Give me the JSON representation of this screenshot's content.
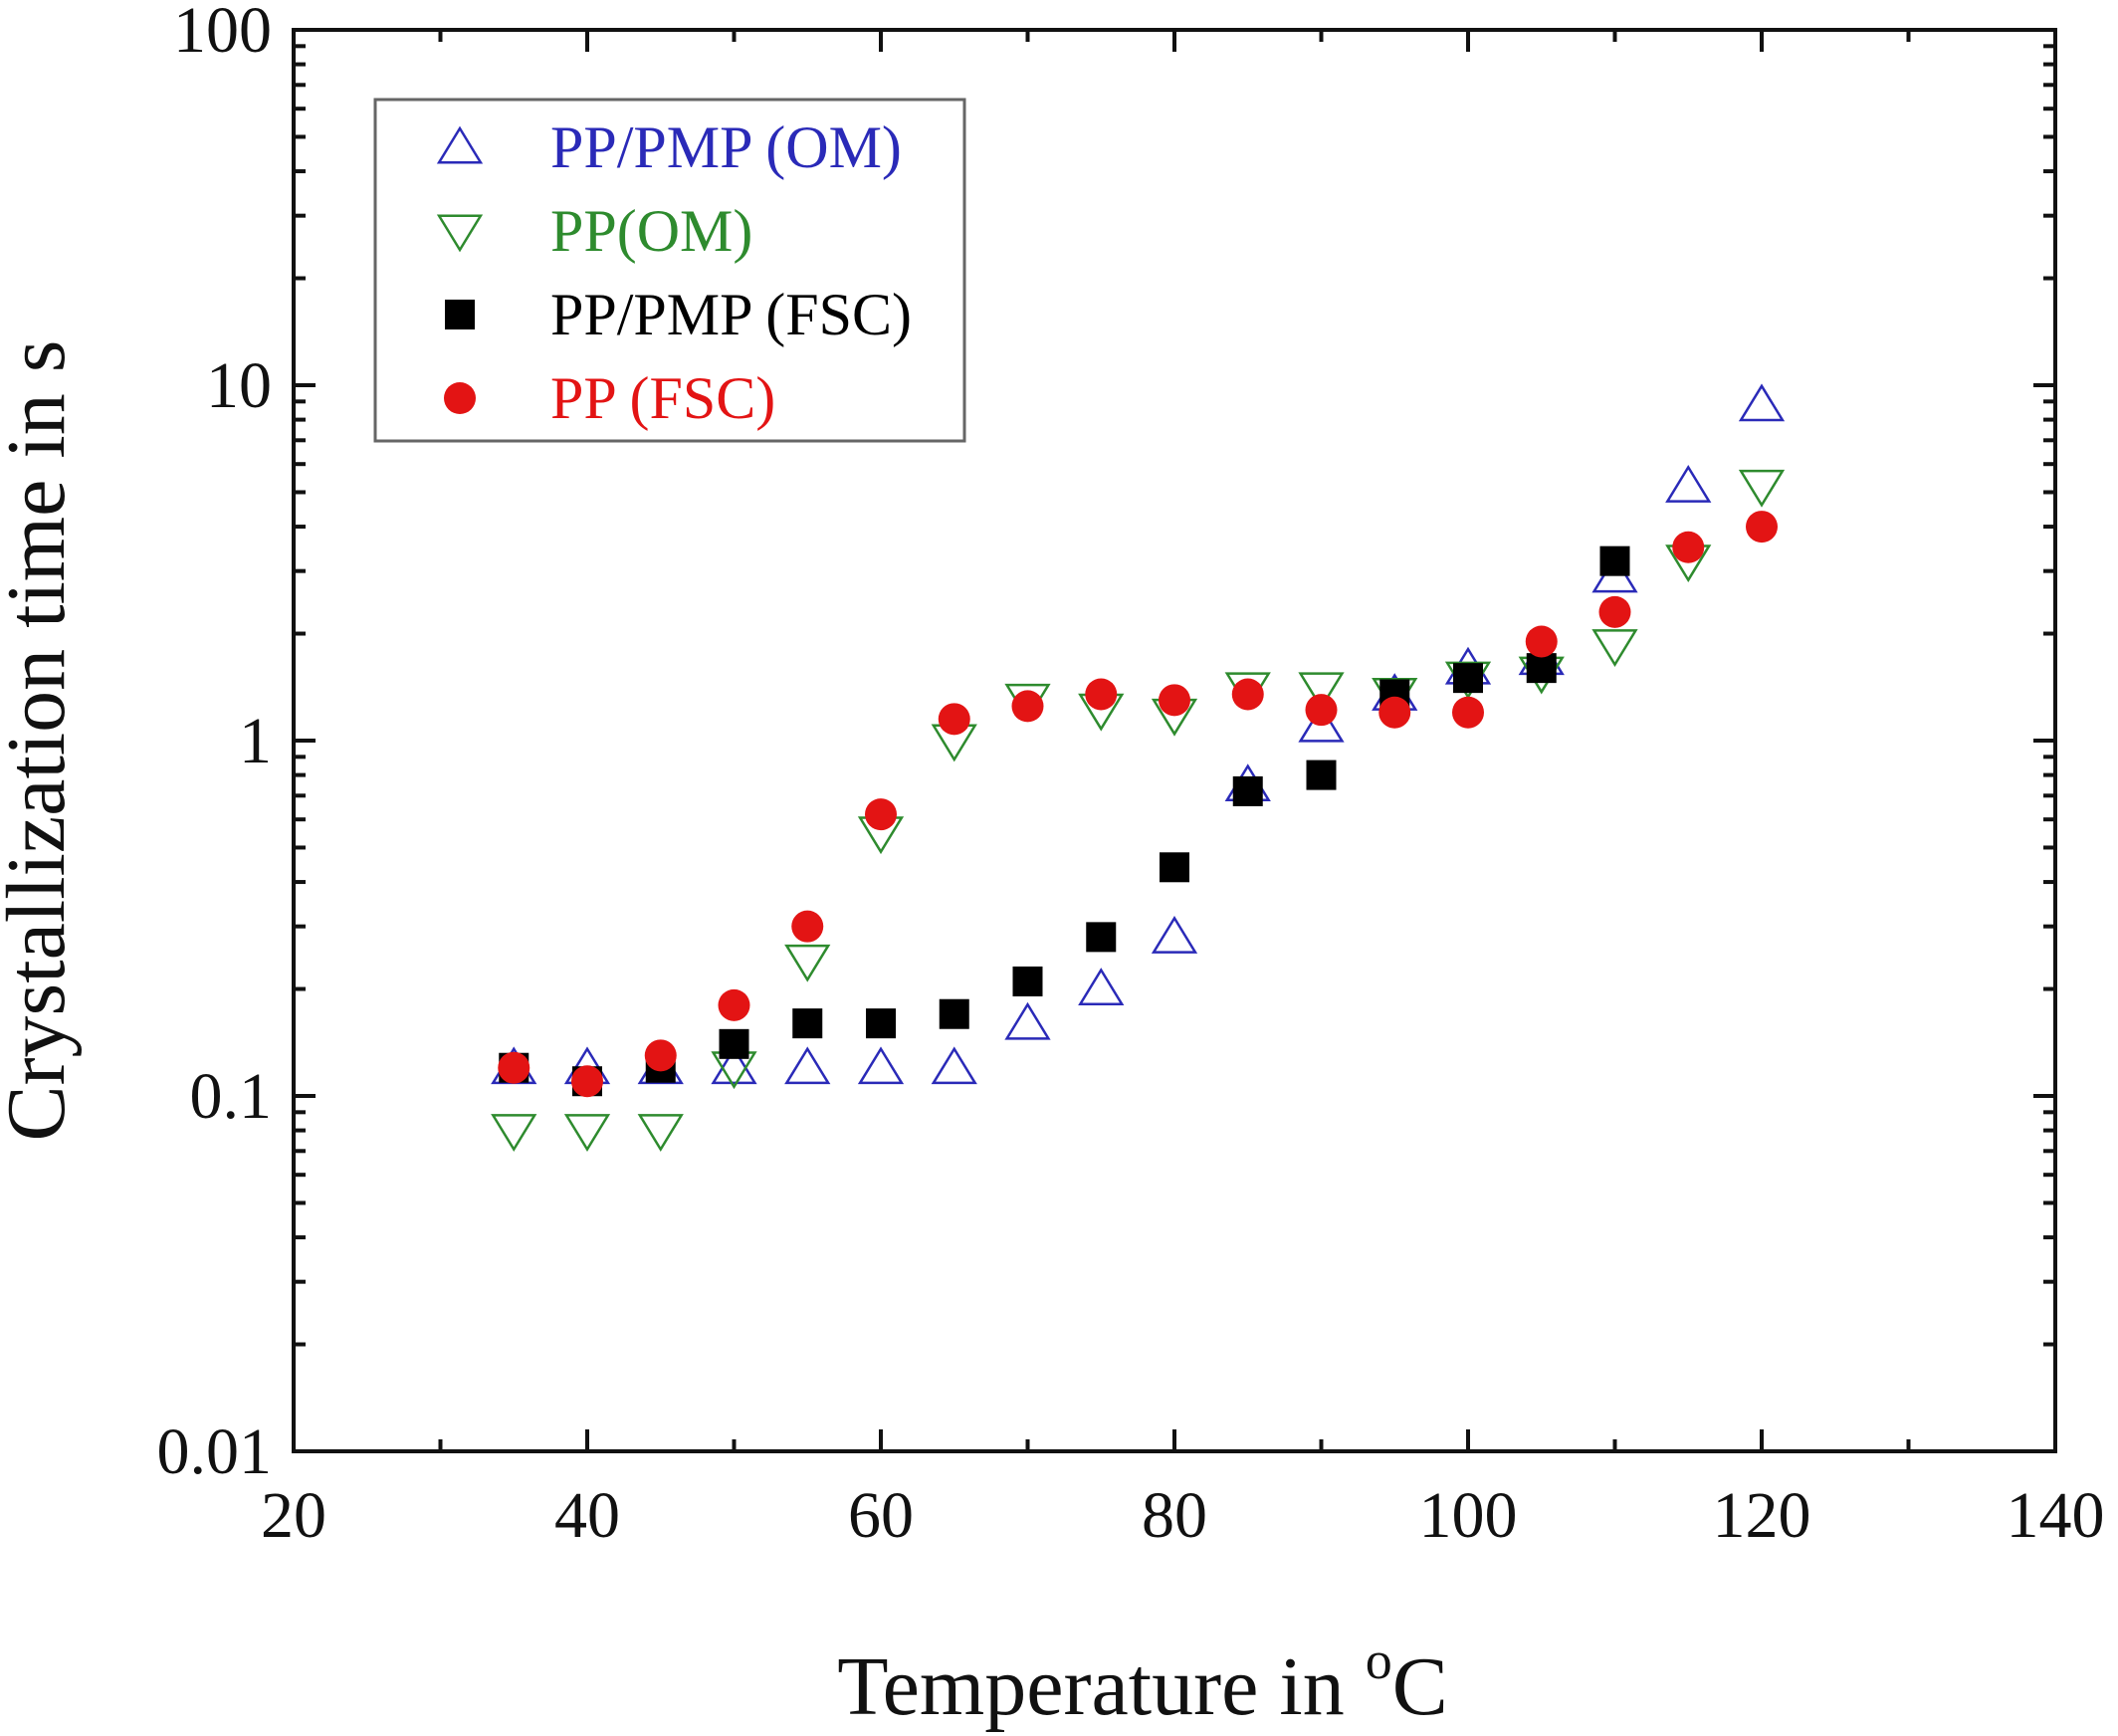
{
  "chart_data": {
    "type": "scatter",
    "xlabel": {
      "main": "Temperature in ",
      "sup": "o",
      "end": "C"
    },
    "ylabel": "Crystallization time in s",
    "xlim": [
      20,
      140
    ],
    "ylim": [
      0.01,
      100
    ],
    "yscale": "log",
    "x_ticks": [
      20,
      40,
      60,
      80,
      100,
      120,
      140
    ],
    "x_tick_labels": [
      "20",
      "40",
      "60",
      "80",
      "100",
      "120",
      "140"
    ],
    "y_ticks": [
      0.01,
      0.1,
      1,
      10,
      100
    ],
    "y_tick_labels": [
      "0.01",
      "0.1",
      "1",
      "10",
      "100"
    ],
    "grid": false,
    "legend_position": "top-left",
    "series": [
      {
        "name": "PP/PMP (OM)",
        "color": "#2a2ab8",
        "marker": "triangle-up-open",
        "x": [
          35,
          40,
          45,
          50,
          55,
          60,
          65,
          70,
          75,
          80,
          85,
          90,
          95,
          100,
          105,
          110,
          115,
          120
        ],
        "y": [
          0.12,
          0.12,
          0.12,
          0.12,
          0.12,
          0.12,
          0.12,
          0.16,
          0.2,
          0.28,
          0.75,
          1.1,
          1.35,
          1.6,
          1.7,
          2.9,
          5.2,
          8.8
        ]
      },
      {
        "name": "PP(OM)",
        "color": "#2e8b2e",
        "marker": "triangle-down-open",
        "x": [
          35,
          40,
          45,
          50,
          55,
          60,
          65,
          70,
          75,
          80,
          85,
          90,
          95,
          100,
          105,
          110,
          115,
          120
        ],
        "y": [
          0.08,
          0.08,
          0.08,
          0.12,
          0.24,
          0.55,
          1.0,
          1.3,
          1.22,
          1.18,
          1.4,
          1.4,
          1.35,
          1.5,
          1.55,
          1.85,
          3.2,
          5.2
        ]
      },
      {
        "name": "PP/PMP (FSC)",
        "color": "#000000",
        "marker": "square-filled",
        "x": [
          35,
          40,
          45,
          50,
          55,
          60,
          65,
          70,
          75,
          80,
          85,
          90,
          95,
          100,
          105,
          110
        ],
        "y": [
          0.12,
          0.11,
          0.12,
          0.14,
          0.16,
          0.16,
          0.17,
          0.21,
          0.28,
          0.44,
          0.72,
          0.8,
          1.35,
          1.5,
          1.6,
          3.2
        ]
      },
      {
        "name": "PP (FSC)",
        "color": "#e31414",
        "marker": "circle-filled",
        "x": [
          35,
          40,
          45,
          50,
          55,
          60,
          65,
          70,
          75,
          80,
          85,
          90,
          95,
          100,
          105,
          110,
          115,
          120
        ],
        "y": [
          0.12,
          0.11,
          0.13,
          0.18,
          0.3,
          0.62,
          1.15,
          1.25,
          1.35,
          1.3,
          1.35,
          1.22,
          1.2,
          1.2,
          1.9,
          2.3,
          3.5,
          4.0
        ]
      }
    ]
  }
}
